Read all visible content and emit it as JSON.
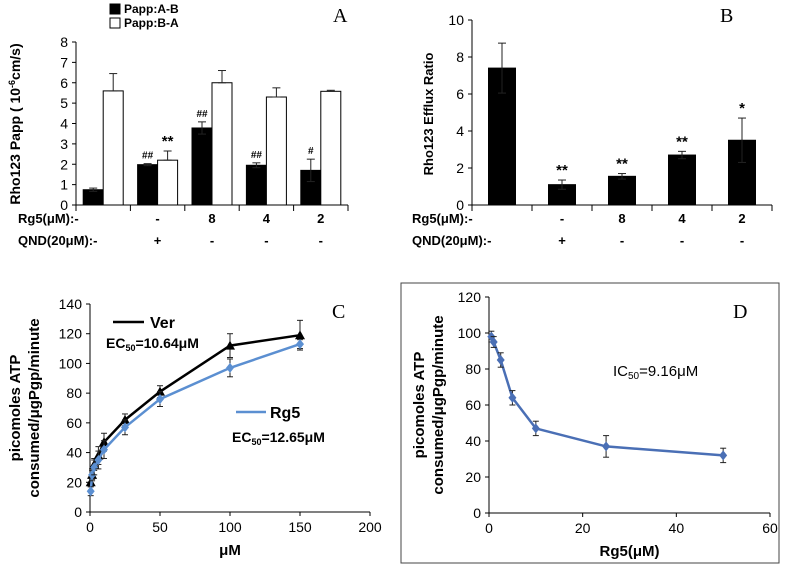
{
  "chart_data": [
    {
      "panel": "A",
      "type": "bar",
      "panel_letter": "A",
      "ylabel": "Rho123  Papp (10⁻⁶cm/s)",
      "ylabel_parts": [
        "Rho123  Papp ( 10",
        "-6",
        "cm/s)"
      ],
      "ylim": [
        0,
        8
      ],
      "yticks": [
        0,
        1,
        2,
        3,
        4,
        5,
        6,
        7,
        8
      ],
      "legend": [
        "Papp:A-B",
        "Papp:B-A"
      ],
      "row_labels": [
        "Rg5(μM):-",
        "QND(20μM):-"
      ],
      "rg5": [
        "",
        "-",
        "8",
        "4",
        "2"
      ],
      "qnd": [
        "",
        "+",
        "-",
        "-",
        "-"
      ],
      "series": [
        {
          "name": "Papp:A-B",
          "color": "#000000",
          "values": [
            0.75,
            1.98,
            3.78,
            1.95,
            1.7
          ],
          "errors": [
            0.08,
            0.05,
            0.3,
            0.12,
            0.55
          ],
          "marks": [
            "",
            "##",
            "##",
            "##",
            "#"
          ]
        },
        {
          "name": "Papp:B-A",
          "color": "#ffffff",
          "values": [
            5.6,
            2.2,
            6.0,
            5.3,
            5.58
          ],
          "errors": [
            0.85,
            0.45,
            0.6,
            0.45,
            0.05
          ],
          "marks": [
            "",
            "**",
            "",
            "",
            ""
          ]
        }
      ]
    },
    {
      "panel": "B",
      "type": "bar",
      "panel_letter": "B",
      "ylabel": "Rho123  Efflux  Ratio",
      "ylim": [
        0,
        10
      ],
      "yticks": [
        0,
        2,
        4,
        6,
        8,
        10
      ],
      "row_labels": [
        "Rg5(μM):-",
        "QND(20μM):-"
      ],
      "rg5": [
        "",
        "-",
        "8",
        "4",
        "2"
      ],
      "qnd": [
        "",
        "+",
        "-",
        "-",
        "-"
      ],
      "series": [
        {
          "name": "Efflux Ratio",
          "color": "#000000",
          "values": [
            7.4,
            1.1,
            1.55,
            2.7,
            3.5
          ],
          "errors": [
            1.35,
            0.25,
            0.15,
            0.2,
            1.2
          ],
          "marks": [
            "",
            "**",
            "**",
            "**",
            "*"
          ]
        }
      ]
    },
    {
      "panel": "C",
      "type": "line",
      "panel_letter": "C",
      "ylabel_lines": [
        "picomoles ATP",
        "consumed/μgPgp/minute"
      ],
      "xlabel": "μM",
      "xlim": [
        0,
        200
      ],
      "xticks": [
        0,
        50,
        100,
        150,
        200
      ],
      "ylim": [
        0,
        140
      ],
      "yticks": [
        0,
        20,
        40,
        60,
        80,
        100,
        120,
        140
      ],
      "series": [
        {
          "name": "Ver",
          "color": "#000000",
          "marker": "triangle",
          "ec50_parts": [
            "EC",
            "50",
            "=10.64μM"
          ],
          "x": [
            0.5,
            1.5,
            3,
            6,
            10,
            25,
            50,
            100,
            150
          ],
          "y": [
            20,
            25,
            32,
            38,
            47,
            62,
            81,
            112,
            119
          ],
          "errors": [
            3,
            3,
            4,
            6,
            6,
            4,
            4,
            8,
            10
          ]
        },
        {
          "name": "Rg5",
          "color": "#5b8fd1",
          "marker": "diamond",
          "ec50_parts": [
            "EC",
            "50",
            "=12.65μM"
          ],
          "x": [
            0.5,
            1.5,
            3,
            6,
            10,
            25,
            50,
            100,
            150
          ],
          "y": [
            14,
            25,
            30,
            35,
            42,
            57,
            76,
            97,
            113
          ],
          "errors": [
            3,
            4,
            5,
            6,
            6,
            5,
            5,
            6,
            3
          ]
        }
      ]
    },
    {
      "panel": "D",
      "type": "line",
      "panel_letter": "D",
      "ylabel_lines": [
        "picomoles ATP",
        "consumed/μgPgp/minute"
      ],
      "xlabel": "Rg5(μM)",
      "xlim": [
        0,
        60
      ],
      "xticks": [
        0,
        20,
        40,
        60
      ],
      "ylim": [
        0,
        120
      ],
      "yticks": [
        0,
        20,
        40,
        60,
        80,
        100,
        120
      ],
      "ic50_parts": [
        "IC",
        "50",
        "=9.16μM"
      ],
      "series": [
        {
          "name": "Rg5",
          "color": "#4a6fb5",
          "marker": "diamond",
          "x": [
            0.5,
            1,
            2.5,
            5,
            10,
            25,
            50
          ],
          "y": [
            98,
            95,
            85,
            64,
            47,
            37,
            32
          ],
          "errors": [
            3,
            3,
            4,
            4,
            4,
            6,
            4
          ]
        }
      ]
    }
  ]
}
